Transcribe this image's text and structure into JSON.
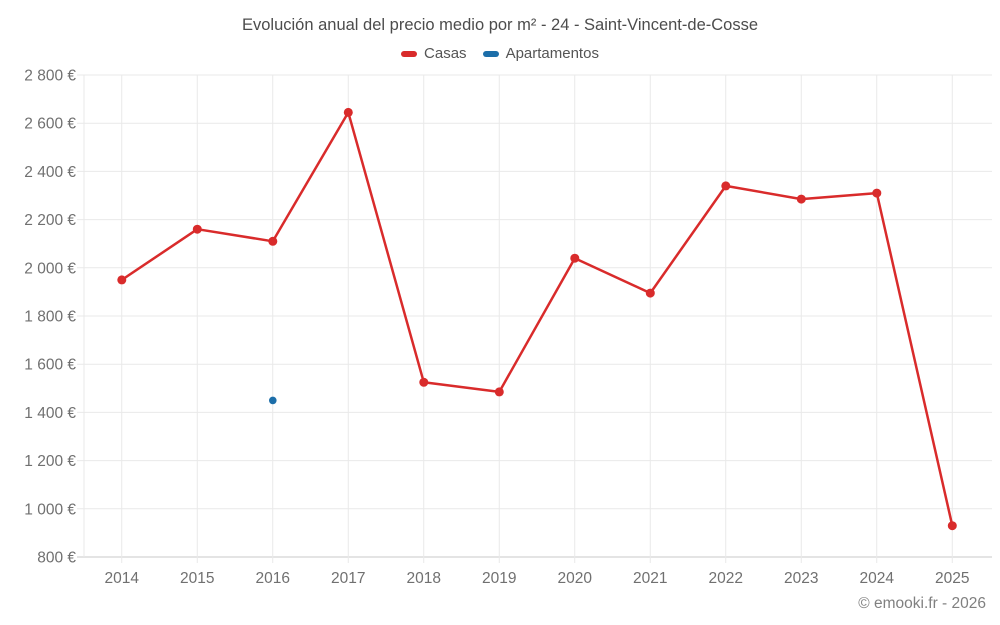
{
  "title": "Evolución anual del precio medio por m² - 24 - Saint-Vincent-de-Cosse",
  "legend": {
    "items": [
      {
        "label": "Casas",
        "color": "#d92b2b"
      },
      {
        "label": "Apartamentos",
        "color": "#1c6ea9"
      }
    ]
  },
  "footer": {
    "credit": "© emooki.fr - 2026"
  },
  "colors": {
    "casas": "#d92b2b",
    "apartamentos": "#1c6ea9",
    "grid": "#e9e9e9",
    "axis": "#c9c9c9",
    "tick_text": "#707070",
    "title_text": "#4c4c4c"
  },
  "chart_data": {
    "type": "line",
    "title": "Evolución anual del precio medio por m² - 24 - Saint-Vincent-de-Cosse",
    "xlabel": "",
    "ylabel": "",
    "categories": [
      "2014",
      "2015",
      "2016",
      "2017",
      "2018",
      "2019",
      "2020",
      "2021",
      "2022",
      "2023",
      "2024",
      "2025"
    ],
    "series": [
      {
        "name": "Casas",
        "color": "#d92b2b",
        "values": [
          1950,
          2160,
          2110,
          2645,
          1525,
          1485,
          2040,
          1895,
          2340,
          2285,
          2310,
          930
        ]
      },
      {
        "name": "Apartamentos",
        "color": "#1c6ea9",
        "values": [
          null,
          null,
          1450,
          null,
          null,
          null,
          null,
          null,
          null,
          null,
          null,
          null
        ]
      }
    ],
    "ylim": [
      800,
      2800
    ],
    "ytick_step": 200,
    "ytick_suffix": " €",
    "grid": true,
    "legend_position": "top",
    "unit": "EUR/m²"
  }
}
